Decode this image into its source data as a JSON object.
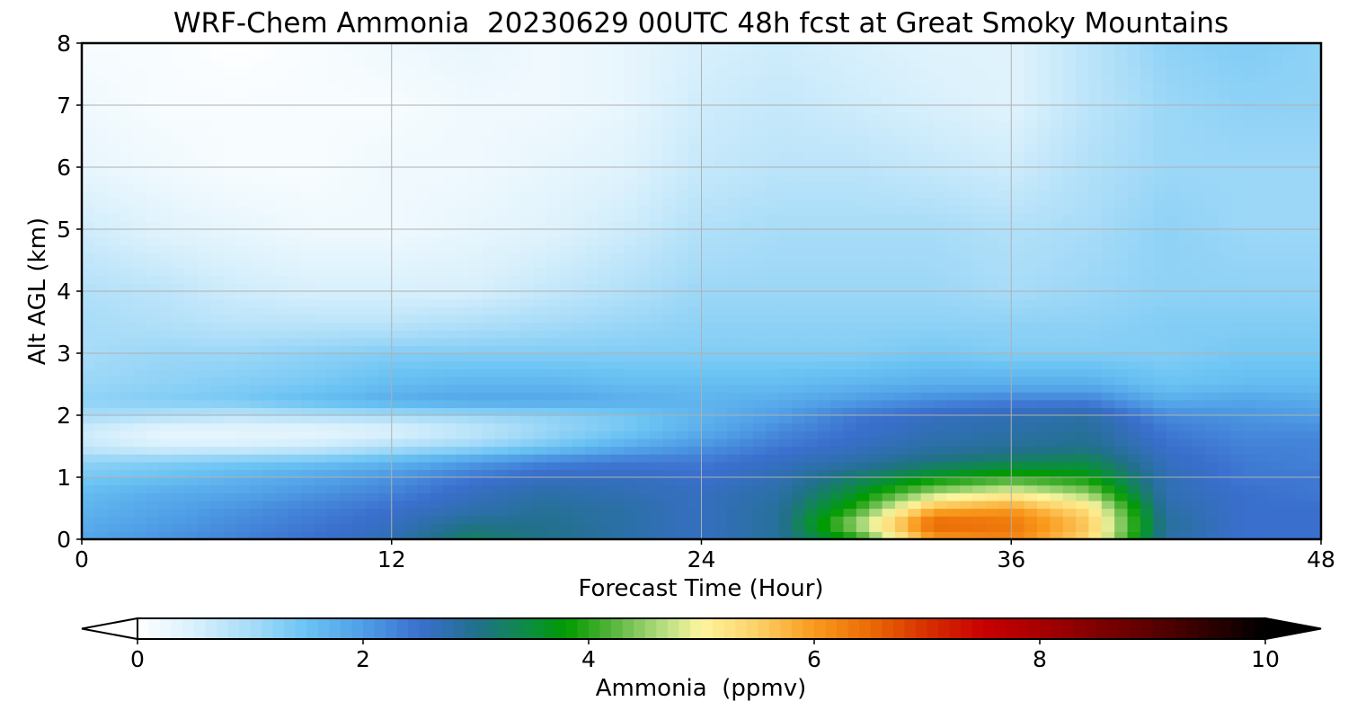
{
  "chart_data": {
    "type": "heatmap",
    "title": "WRF-Chem Ammonia  20230629 00UTC 48h fcst at Great Smoky Mountains",
    "xlabel": "Forecast Time (Hour)",
    "ylabel": "Alt AGL (km)",
    "xlim": [
      0,
      48
    ],
    "ylim": [
      0,
      8
    ],
    "xticks": [
      0,
      12,
      24,
      36,
      48
    ],
    "yticks": [
      0,
      1,
      2,
      3,
      4,
      5,
      6,
      7,
      8
    ],
    "grid": true,
    "colorbar": {
      "label": "Ammonia  (ppmv)",
      "range": [
        0,
        10
      ],
      "ticks": [
        0,
        2,
        4,
        6,
        8,
        10
      ],
      "extend": "both",
      "orientation": "horizontal",
      "colors": [
        {
          "v": 0.0,
          "c": "#ffffff"
        },
        {
          "v": 0.5,
          "c": "#d8f0fc"
        },
        {
          "v": 1.0,
          "c": "#a8dcf8"
        },
        {
          "v": 1.5,
          "c": "#6ac3f3"
        },
        {
          "v": 2.0,
          "c": "#4f9ee6"
        },
        {
          "v": 2.5,
          "c": "#3a6fcd"
        },
        {
          "v": 3.0,
          "c": "#22708d"
        },
        {
          "v": 3.5,
          "c": "#0a8f3c"
        },
        {
          "v": 3.8,
          "c": "#019b00"
        },
        {
          "v": 4.2,
          "c": "#54b43b"
        },
        {
          "v": 4.6,
          "c": "#a8d97a"
        },
        {
          "v": 5.0,
          "c": "#fff59e"
        },
        {
          "v": 5.5,
          "c": "#fcd067"
        },
        {
          "v": 6.0,
          "c": "#f99a1c"
        },
        {
          "v": 6.5,
          "c": "#ea6a05"
        },
        {
          "v": 7.0,
          "c": "#d82f00"
        },
        {
          "v": 7.5,
          "c": "#c80000"
        },
        {
          "v": 8.0,
          "c": "#a80000"
        },
        {
          "v": 9.0,
          "c": "#5a0000"
        },
        {
          "v": 10.0,
          "c": "#000000"
        }
      ]
    },
    "x_hours": [
      0,
      3,
      6,
      9,
      12,
      15,
      18,
      21,
      24,
      27,
      30,
      33,
      36,
      39,
      42,
      45,
      48
    ],
    "y_km": [
      0.0,
      0.25,
      0.5,
      0.75,
      1.0,
      1.25,
      1.5,
      1.75,
      2.0,
      2.25,
      2.5,
      3.0,
      3.5,
      4.0,
      5.0,
      6.0,
      7.0,
      8.0
    ],
    "values_ppmv_rows_by_height": [
      [
        1.9,
        2.1,
        2.3,
        2.5,
        2.7,
        3.3,
        3.0,
        2.8,
        2.6,
        2.9,
        3.9,
        6.0,
        6.2,
        5.4,
        2.8,
        2.5,
        2.5
      ],
      [
        1.8,
        2.0,
        2.2,
        2.4,
        2.6,
        3.0,
        3.0,
        2.8,
        2.6,
        2.9,
        4.6,
        6.6,
        6.4,
        5.6,
        2.9,
        2.5,
        2.5
      ],
      [
        1.7,
        1.9,
        2.1,
        2.3,
        2.5,
        2.7,
        2.9,
        2.8,
        2.6,
        2.9,
        4.0,
        5.8,
        6.0,
        5.3,
        2.8,
        2.5,
        2.5
      ],
      [
        1.6,
        1.8,
        1.9,
        2.1,
        2.3,
        2.6,
        2.8,
        2.7,
        2.6,
        2.8,
        3.6,
        4.6,
        5.0,
        4.5,
        2.7,
        2.5,
        2.4
      ],
      [
        1.4,
        1.5,
        1.7,
        1.9,
        2.1,
        2.4,
        2.6,
        2.6,
        2.5,
        2.7,
        3.2,
        3.7,
        4.0,
        3.8,
        2.7,
        2.4,
        2.4
      ],
      [
        1.2,
        1.3,
        1.4,
        1.5,
        1.7,
        2.0,
        2.3,
        2.4,
        2.4,
        2.6,
        2.8,
        3.1,
        3.3,
        3.4,
        2.6,
        2.4,
        2.3
      ],
      [
        0.7,
        0.5,
        0.5,
        0.6,
        0.9,
        1.1,
        1.4,
        1.8,
        2.1,
        2.4,
        2.6,
        2.8,
        2.9,
        3.0,
        2.5,
        2.3,
        2.3
      ],
      [
        0.6,
        0.3,
        0.3,
        0.3,
        0.4,
        0.7,
        1.1,
        1.4,
        1.8,
        2.2,
        2.5,
        2.7,
        2.8,
        2.9,
        2.4,
        2.2,
        2.2
      ],
      [
        1.0,
        0.9,
        0.8,
        0.9,
        1.0,
        1.1,
        1.2,
        1.4,
        1.7,
        2.0,
        2.4,
        2.6,
        2.7,
        2.8,
        2.2,
        2.1,
        2.0
      ],
      [
        1.2,
        1.3,
        1.4,
        1.6,
        1.8,
        1.9,
        1.9,
        1.8,
        1.7,
        1.8,
        2.0,
        2.2,
        2.3,
        2.3,
        1.8,
        1.9,
        1.8
      ],
      [
        1.1,
        1.2,
        1.3,
        1.4,
        1.6,
        1.7,
        1.7,
        1.6,
        1.6,
        1.6,
        1.7,
        1.8,
        1.8,
        1.8,
        1.5,
        1.6,
        1.6
      ],
      [
        1.0,
        1.1,
        1.1,
        1.2,
        1.3,
        1.3,
        1.3,
        1.3,
        1.3,
        1.3,
        1.3,
        1.4,
        1.3,
        1.3,
        1.3,
        1.4,
        1.4
      ],
      [
        1.0,
        0.9,
        0.8,
        0.8,
        0.8,
        0.9,
        1.0,
        1.1,
        1.2,
        1.2,
        1.2,
        1.2,
        1.2,
        1.2,
        1.3,
        1.3,
        1.3
      ],
      [
        0.9,
        0.8,
        0.6,
        0.5,
        0.5,
        0.5,
        0.7,
        0.9,
        1.1,
        1.1,
        1.1,
        1.1,
        1.0,
        1.1,
        1.2,
        1.2,
        1.2
      ],
      [
        0.6,
        0.4,
        0.3,
        0.2,
        0.2,
        0.3,
        0.4,
        0.6,
        0.9,
        1.0,
        1.0,
        1.0,
        0.9,
        1.0,
        1.2,
        1.1,
        1.1
      ],
      [
        0.3,
        0.2,
        0.1,
        0.1,
        0.2,
        0.2,
        0.3,
        0.4,
        0.7,
        0.8,
        0.8,
        0.7,
        0.6,
        0.9,
        1.1,
        1.1,
        1.1
      ],
      [
        0.2,
        0.1,
        0.1,
        0.1,
        0.1,
        0.2,
        0.2,
        0.3,
        0.6,
        0.7,
        0.6,
        0.5,
        0.4,
        0.8,
        1.1,
        1.2,
        1.2
      ],
      [
        0.1,
        0.1,
        0.0,
        0.1,
        0.2,
        0.3,
        0.2,
        0.3,
        0.5,
        0.6,
        0.5,
        0.4,
        0.4,
        0.8,
        1.2,
        1.3,
        1.2
      ]
    ]
  }
}
